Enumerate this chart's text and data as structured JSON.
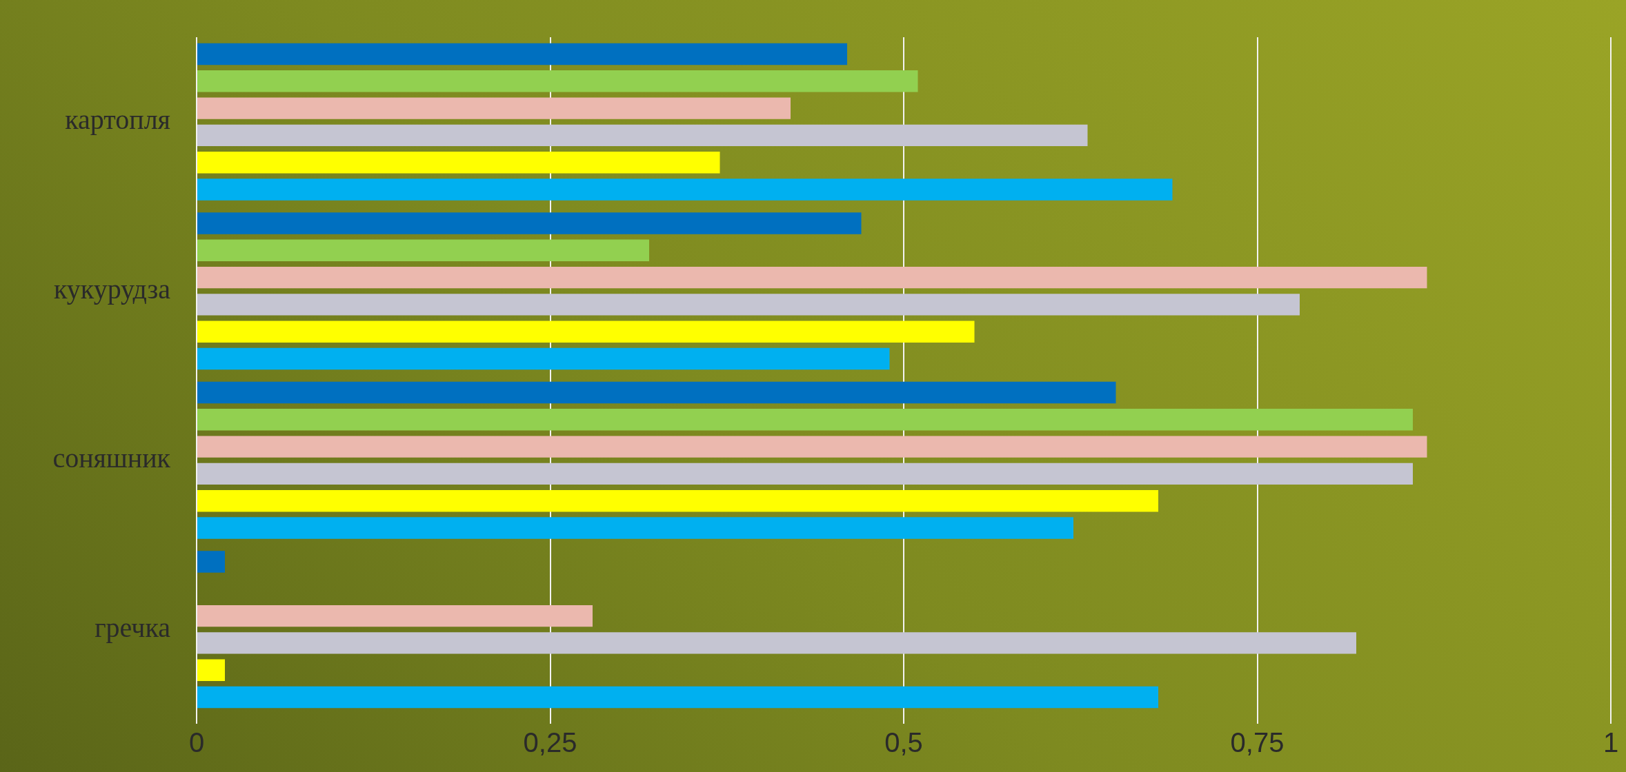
{
  "chart_data": {
    "type": "bar",
    "orientation": "horizontal",
    "categories": [
      "картопля",
      "кукурудза",
      "соняшник",
      "гречка"
    ],
    "series": [
      {
        "color": "#0070c0",
        "values": [
          0.46,
          0.47,
          0.65,
          0.02
        ]
      },
      {
        "color": "#92d050",
        "values": [
          0.51,
          0.32,
          0.86,
          null
        ]
      },
      {
        "color": "#ebb8ae",
        "values": [
          0.42,
          0.87,
          0.87,
          0.28
        ]
      },
      {
        "color": "#c5c5d2",
        "values": [
          0.63,
          0.78,
          0.86,
          0.82
        ]
      },
      {
        "color": "#ffff00",
        "values": [
          0.37,
          0.55,
          0.68,
          0.02
        ]
      },
      {
        "color": "#00b0f0",
        "values": [
          0.69,
          0.49,
          0.62,
          0.68
        ]
      }
    ],
    "xlim": [
      0,
      1
    ],
    "xticks": [
      {
        "value": 0,
        "label": "0"
      },
      {
        "value": 0.25,
        "label": "0,25"
      },
      {
        "value": 0.5,
        "label": "0,5"
      },
      {
        "value": 0.75,
        "label": "0,75"
      },
      {
        "value": 1,
        "label": "1"
      }
    ],
    "grid": "x",
    "legend": false
  }
}
